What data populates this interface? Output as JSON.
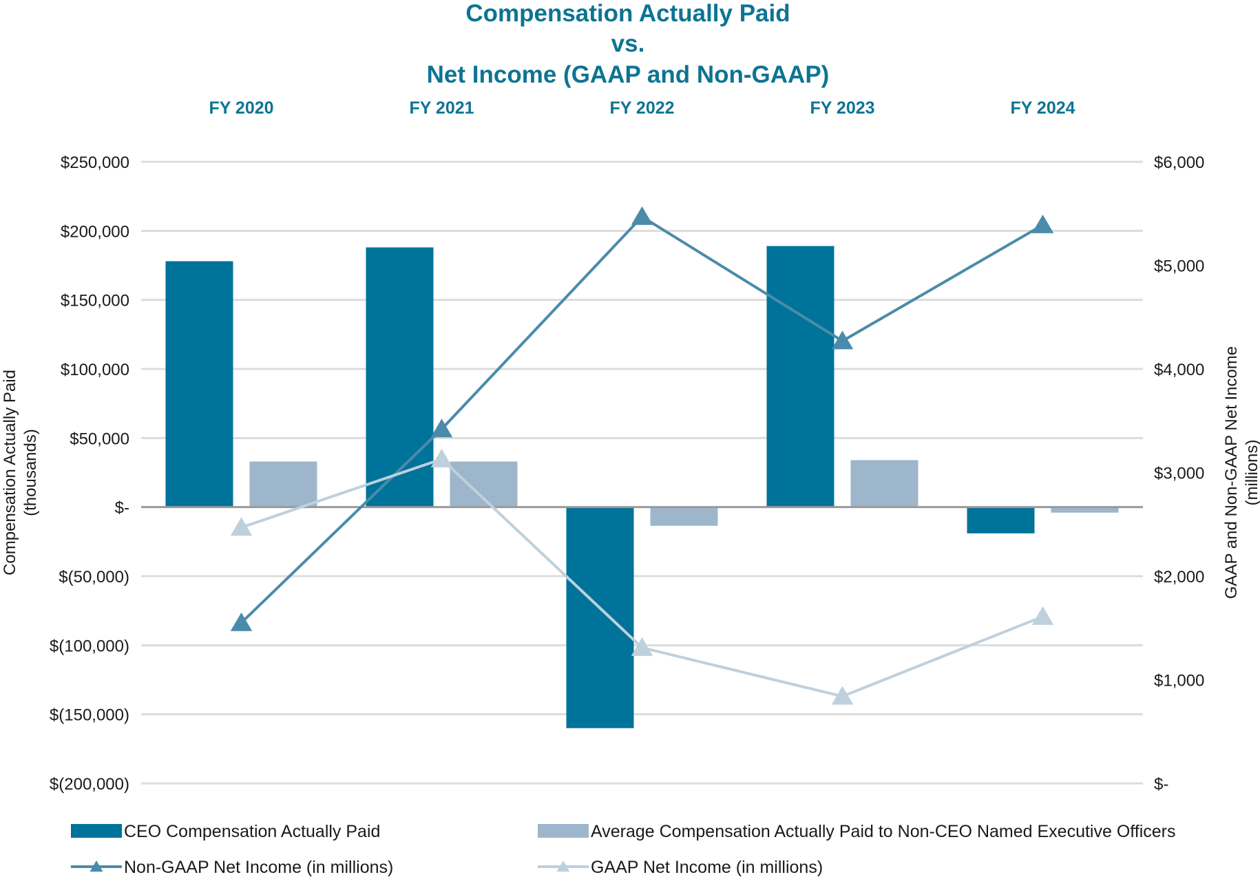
{
  "chart_data": {
    "type": "bar",
    "title_lines": [
      "Compensation Actually Paid",
      "vs.",
      "Net Income (GAAP and Non-GAAP)"
    ],
    "categories": [
      "FY 2020",
      "FY 2021",
      "FY 2022",
      "FY 2023",
      "FY 2024"
    ],
    "ylabel_left": [
      "Compensation Actually Paid",
      "(thousands)"
    ],
    "ylabel_right": [
      "GAAP and Non-GAAP Net Income",
      "(millions)"
    ],
    "y_left": {
      "lim": [
        -200000,
        250000
      ],
      "ticks": [
        250000,
        200000,
        150000,
        100000,
        50000,
        0,
        -50000,
        -100000,
        -150000,
        -200000
      ],
      "tick_labels": [
        "$250,000",
        "$200,000",
        "$150,000",
        "$100,000",
        "$50,000",
        "$-",
        "$(50,000)",
        "$(100,000)",
        "$(150,000)",
        "$(200,000)"
      ]
    },
    "y_right": {
      "lim": [
        0,
        6000
      ],
      "ticks": [
        6000,
        5000,
        4000,
        3000,
        2000,
        1000,
        0
      ],
      "tick_labels": [
        "$6,000",
        "$5,000",
        "$4,000",
        "$3,000",
        "$2,000",
        "$1,000",
        "$-"
      ]
    },
    "series": [
      {
        "name": "CEO Compensation Actually Paid",
        "kind": "bar",
        "axis": "left",
        "color": "#00739a",
        "values": [
          178000,
          188000,
          -160000,
          189000,
          -19000
        ]
      },
      {
        "name": "Average Compensation Actually Paid to Non-CEO Named Executive Officers",
        "kind": "bar",
        "axis": "left",
        "color": "#9db6cc",
        "values": [
          33000,
          33000,
          -13500,
          34000,
          -4000
        ]
      },
      {
        "name": "Non-GAAP Net Income (in millions)",
        "kind": "line",
        "axis": "right",
        "color": "#4a8bab",
        "values": [
          1550,
          3420,
          5470,
          4270,
          5390
        ]
      },
      {
        "name": "GAAP Net Income (in millions)",
        "kind": "line",
        "axis": "right",
        "color": "#bfd0dd",
        "values": [
          2470,
          3130,
          1310,
          840,
          1610
        ]
      }
    ],
    "legend_position": "bottom",
    "grid": true
  }
}
